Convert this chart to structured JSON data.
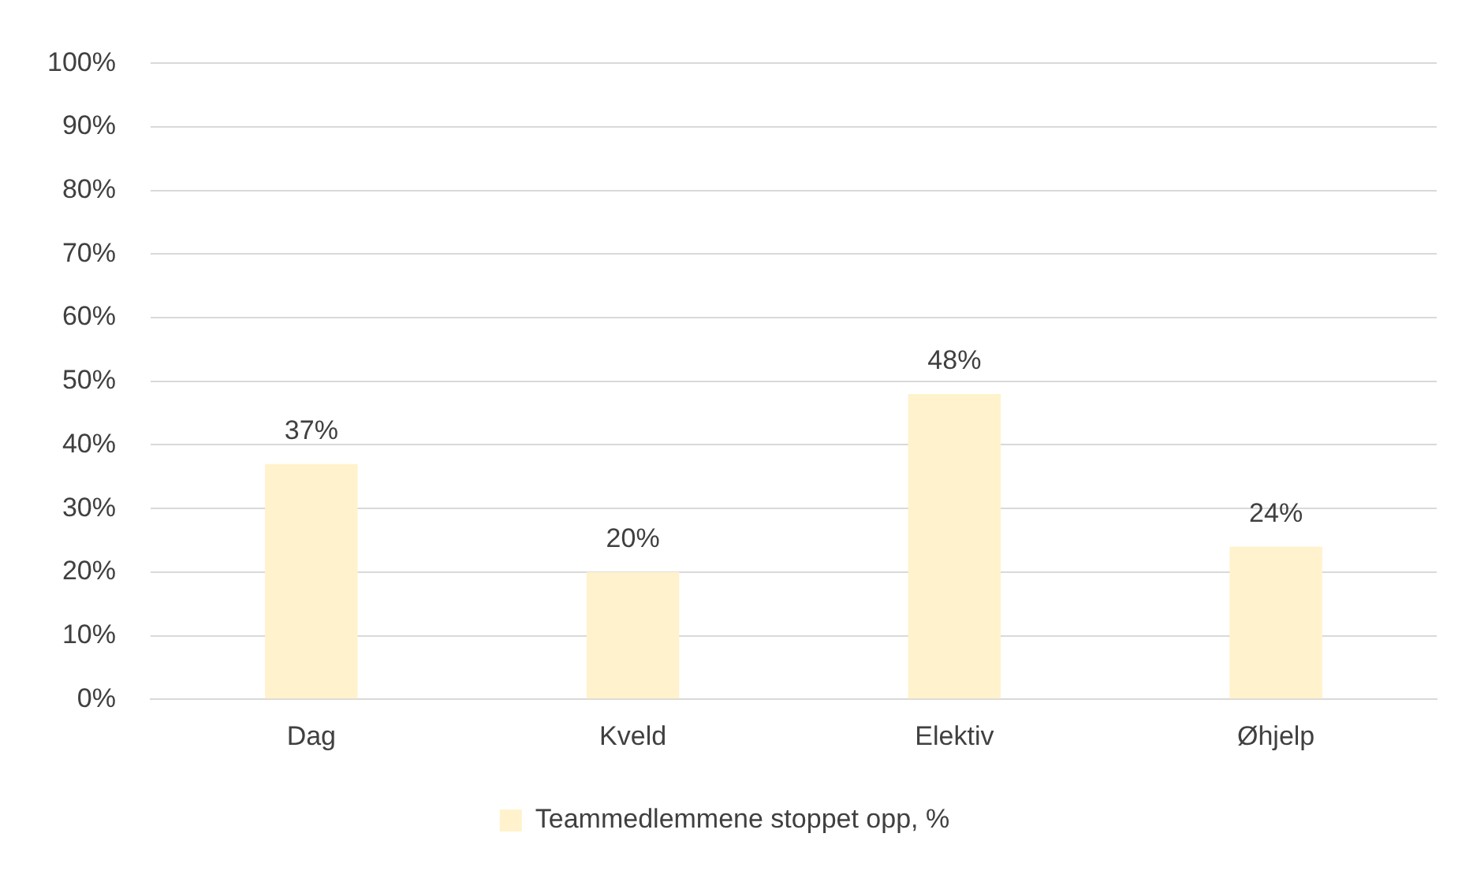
{
  "chart_data": {
    "type": "bar",
    "categories": [
      "Dag",
      "Kveld",
      "Elektiv",
      "Øhjelp"
    ],
    "series": [
      {
        "name": "Teammedlemmene stoppet opp, %",
        "color": "#fff2cc",
        "values": [
          37,
          20,
          48,
          24
        ],
        "value_labels": [
          "37%",
          "20%",
          "48%",
          "24%"
        ]
      }
    ],
    "ylim": [
      0,
      100
    ],
    "yticks": [
      {
        "value": 0,
        "label": "0%"
      },
      {
        "value": 10,
        "label": "10%"
      },
      {
        "value": 20,
        "label": "20%"
      },
      {
        "value": 30,
        "label": "30%"
      },
      {
        "value": 40,
        "label": "40%"
      },
      {
        "value": 50,
        "label": "50%"
      },
      {
        "value": 60,
        "label": "60%"
      },
      {
        "value": 70,
        "label": "70%"
      },
      {
        "value": 80,
        "label": "80%"
      },
      {
        "value": 90,
        "label": "90%"
      },
      {
        "value": 100,
        "label": "100%"
      }
    ],
    "grid": "y",
    "legend": "bottom"
  }
}
